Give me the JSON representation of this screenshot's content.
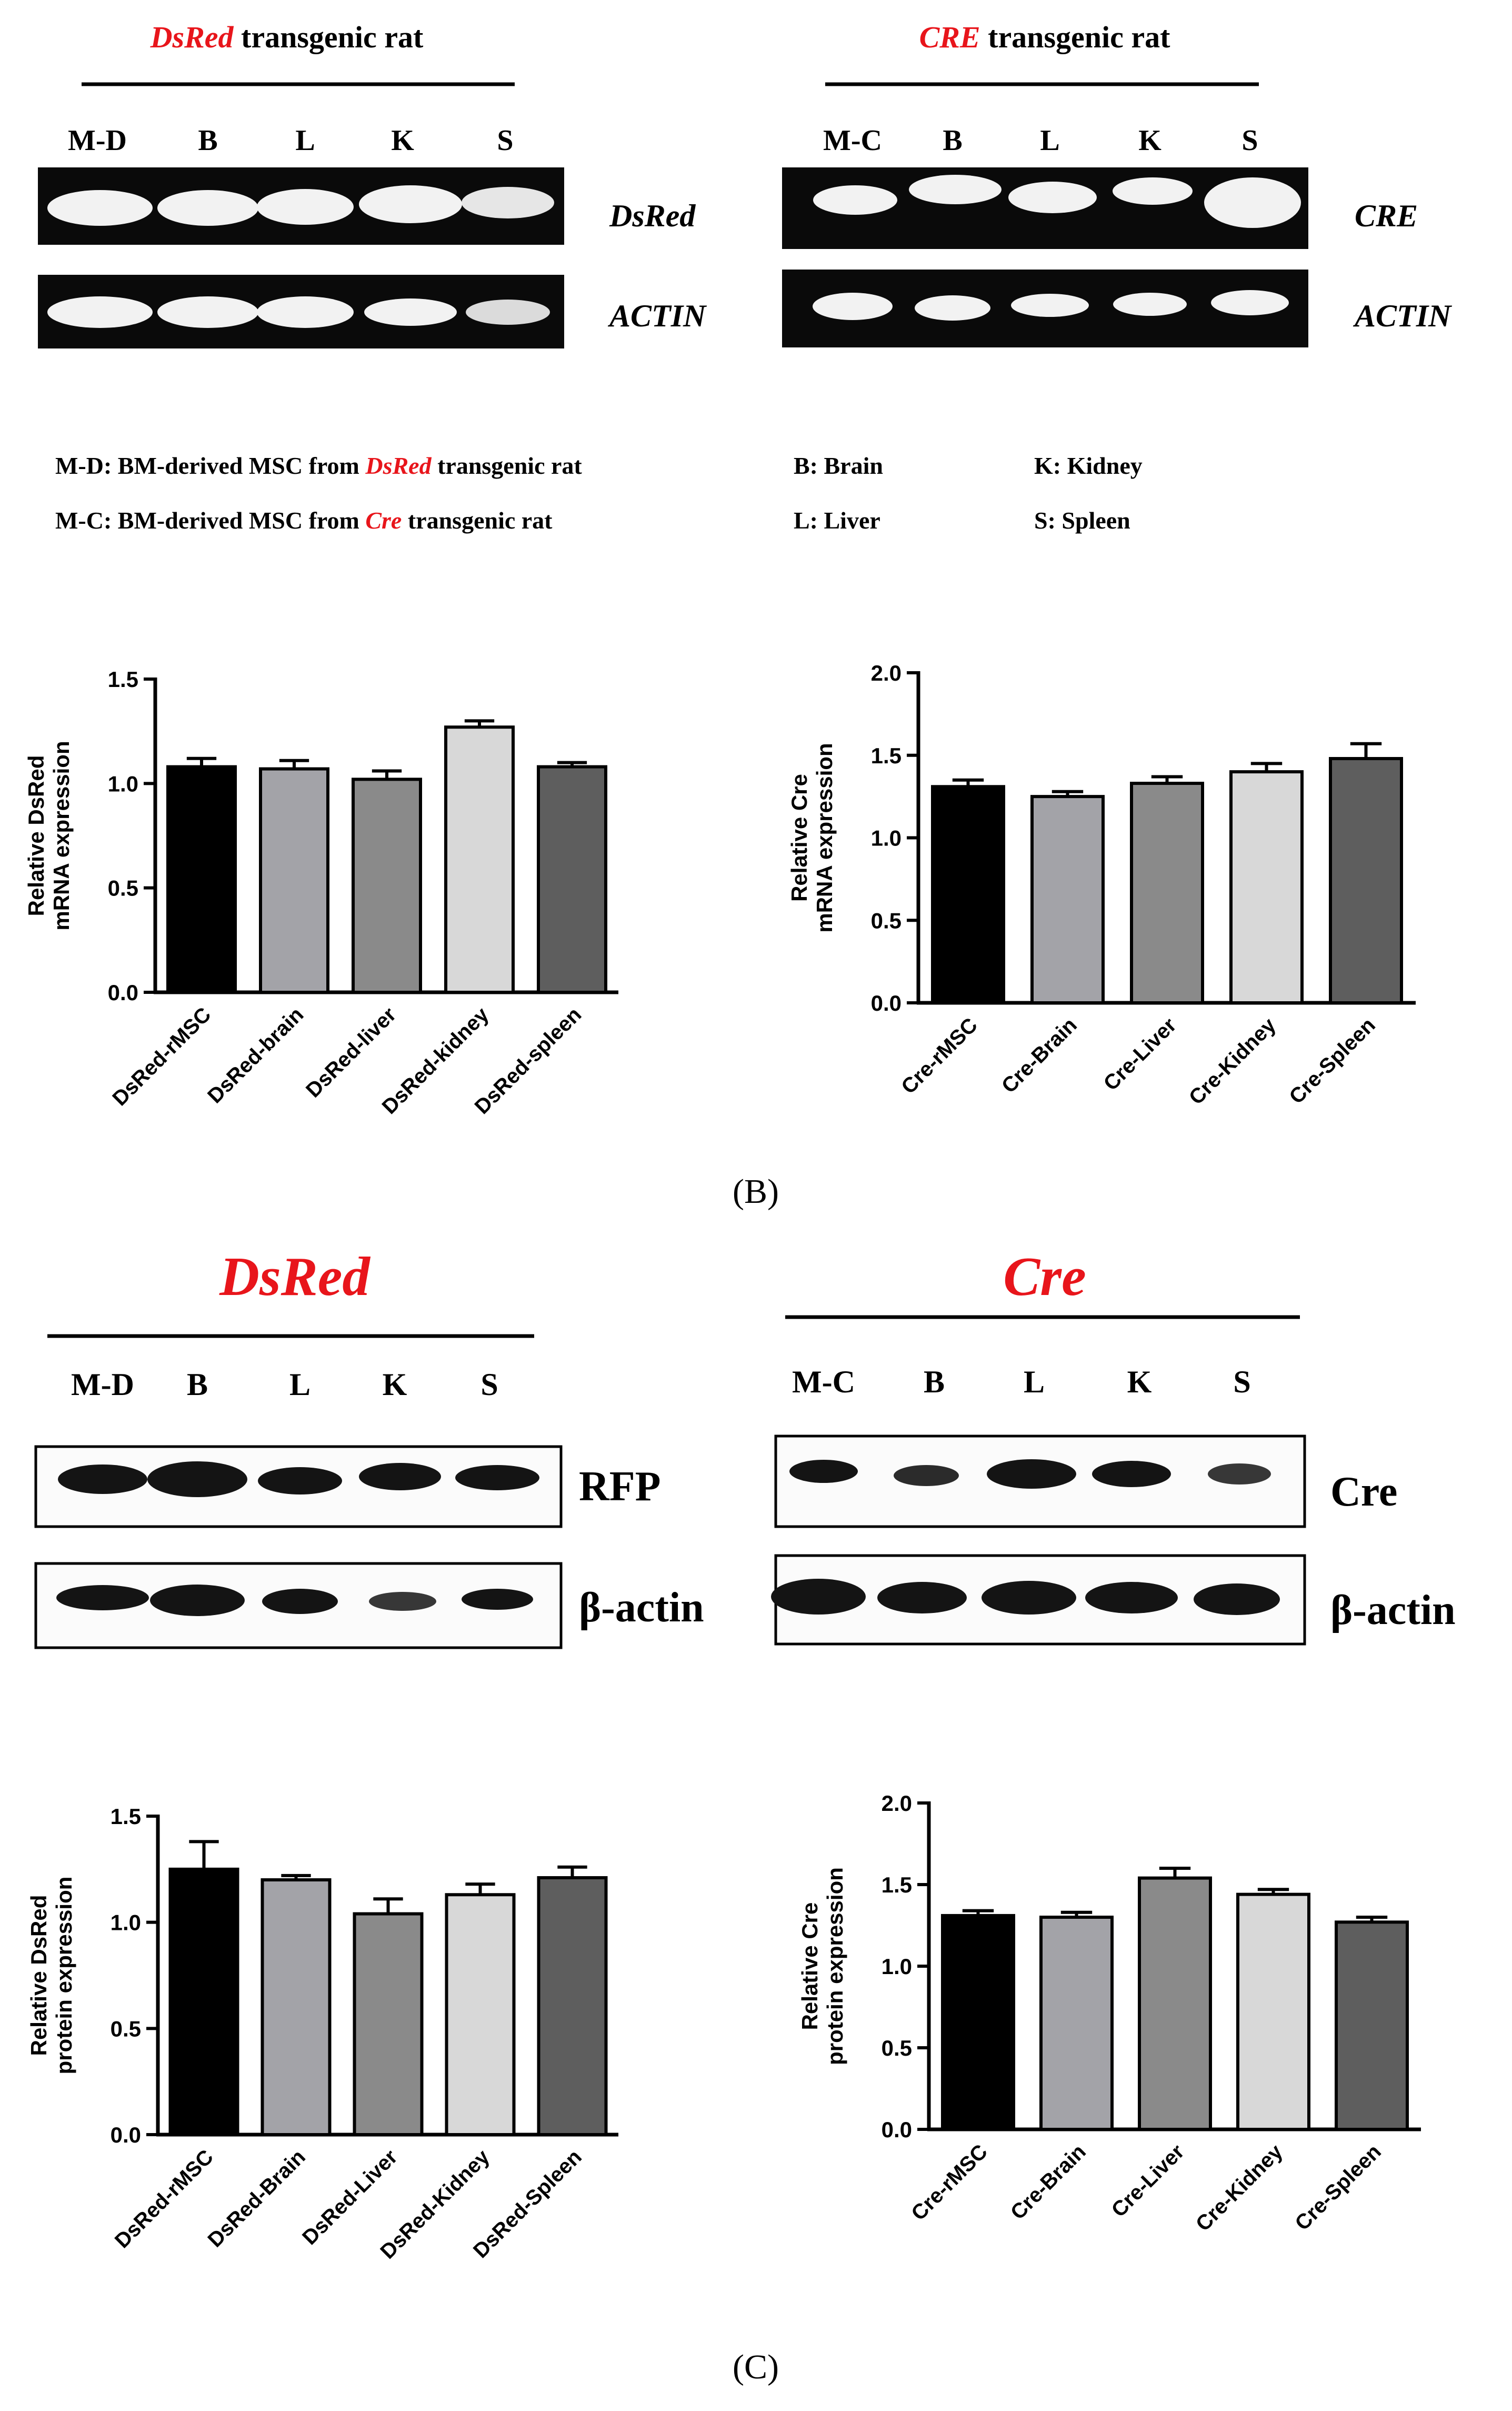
{
  "colors": {
    "red": "#e8151b",
    "gel_bg": "#0a0a0a",
    "gel_band": "#f2f2f2",
    "blot_bg": "#fbfbfb",
    "blot_band": "#141414",
    "bar_fills": [
      "#000000",
      "#a3a3a8",
      "#8a8a8a",
      "#d8d8d8",
      "#5e5e5e"
    ]
  },
  "panel_a": {
    "dsred": {
      "title_italic": "DsRed",
      "title_rest": " transgenic rat",
      "lanes": [
        "M-D",
        "B",
        "L",
        "K",
        "S"
      ],
      "row_labels": [
        "DsRed",
        "ACTIN"
      ]
    },
    "cre": {
      "title_italic": "CRE",
      "title_rest": " transgenic rat",
      "lanes": [
        "M-C",
        "B",
        "L",
        "K",
        "S"
      ],
      "row_labels": [
        "CRE",
        "ACTIN"
      ]
    },
    "legend": {
      "md_prefix": "M-D: BM-derived MSC from ",
      "md_italic": "DsRed",
      "md_suffix": " transgenic rat",
      "mc_prefix": "M-C: BM-derived MSC from ",
      "mc_italic": "Cre",
      "mc_suffix": " transgenic rat",
      "b": "B: Brain",
      "k": "K: Kidney",
      "l": "L: Liver",
      "s": "S: Spleen"
    }
  },
  "panel_b_label": "(B)",
  "panel_c": {
    "dsred": {
      "title": "DsRed",
      "lanes": [
        "M-D",
        "B",
        "L",
        "K",
        "S"
      ],
      "row_labels": [
        "RFP",
        "β-actin"
      ]
    },
    "cre": {
      "title": "Cre",
      "lanes": [
        "M-C",
        "B",
        "L",
        "K",
        "S"
      ],
      "row_labels": [
        "Cre",
        "β-actin"
      ]
    }
  },
  "panel_c_label": "(C)",
  "chart_data": [
    {
      "type": "bar",
      "title": "",
      "ylabel": [
        "Relative DsRed",
        "mRNA expression"
      ],
      "categories": [
        "DsRed-rMSC",
        "DsRed-brain",
        "DsRed-liver",
        "DsRed-kidney",
        "DsRed-spleen"
      ],
      "values": [
        1.08,
        1.07,
        1.02,
        1.27,
        1.08
      ],
      "errors": [
        0.04,
        0.04,
        0.04,
        0.03,
        0.02
      ],
      "ylim": [
        0,
        1.5
      ],
      "yticks": [
        0.0,
        0.5,
        1.0,
        1.5
      ],
      "tick_labels": [
        "0.0",
        "0.5",
        "1.0",
        "1.5"
      ]
    },
    {
      "type": "bar",
      "title": "",
      "ylabel": [
        "Relative Cre",
        "mRNA expression"
      ],
      "categories": [
        "Cre-rMSC",
        "Cre-Brain",
        "Cre-Liver",
        "Cre-Kidney",
        "Cre-Spleen"
      ],
      "values": [
        1.31,
        1.25,
        1.33,
        1.4,
        1.48
      ],
      "errors": [
        0.04,
        0.03,
        0.04,
        0.05,
        0.09
      ],
      "ylim": [
        0,
        2.0
      ],
      "yticks": [
        0.0,
        0.5,
        1.0,
        1.5,
        2.0
      ],
      "tick_labels": [
        "0.0",
        "0.5",
        "1.0",
        "1.5",
        "2.0"
      ]
    },
    {
      "type": "bar",
      "title": "",
      "ylabel": [
        "Relative DsRed",
        "protein expression"
      ],
      "categories": [
        "DsRed-rMSC",
        "DsRed-Brain",
        "DsRed-Liver",
        "DsRed-Kidney",
        "DsRed-Spleen"
      ],
      "values": [
        1.25,
        1.2,
        1.04,
        1.13,
        1.21
      ],
      "errors": [
        0.13,
        0.02,
        0.07,
        0.05,
        0.05
      ],
      "ylim": [
        0,
        1.5
      ],
      "yticks": [
        0.0,
        0.5,
        1.0,
        1.5
      ],
      "tick_labels": [
        "0.0",
        "0.5",
        "1.0",
        "1.5"
      ]
    },
    {
      "type": "bar",
      "title": "",
      "ylabel": [
        "Relative Cre",
        "protein expression"
      ],
      "categories": [
        "Cre-rMSC",
        "Cre-Brain",
        "Cre-Liver",
        "Cre-Kidney",
        "Cre-Spleen"
      ],
      "values": [
        1.31,
        1.3,
        1.54,
        1.44,
        1.27
      ],
      "errors": [
        0.03,
        0.03,
        0.06,
        0.03,
        0.03
      ],
      "ylim": [
        0,
        2.0
      ],
      "yticks": [
        0.0,
        0.5,
        1.0,
        1.5,
        2.0
      ],
      "tick_labels": [
        "0.0",
        "0.5",
        "1.0",
        "1.5",
        "2.0"
      ]
    }
  ]
}
